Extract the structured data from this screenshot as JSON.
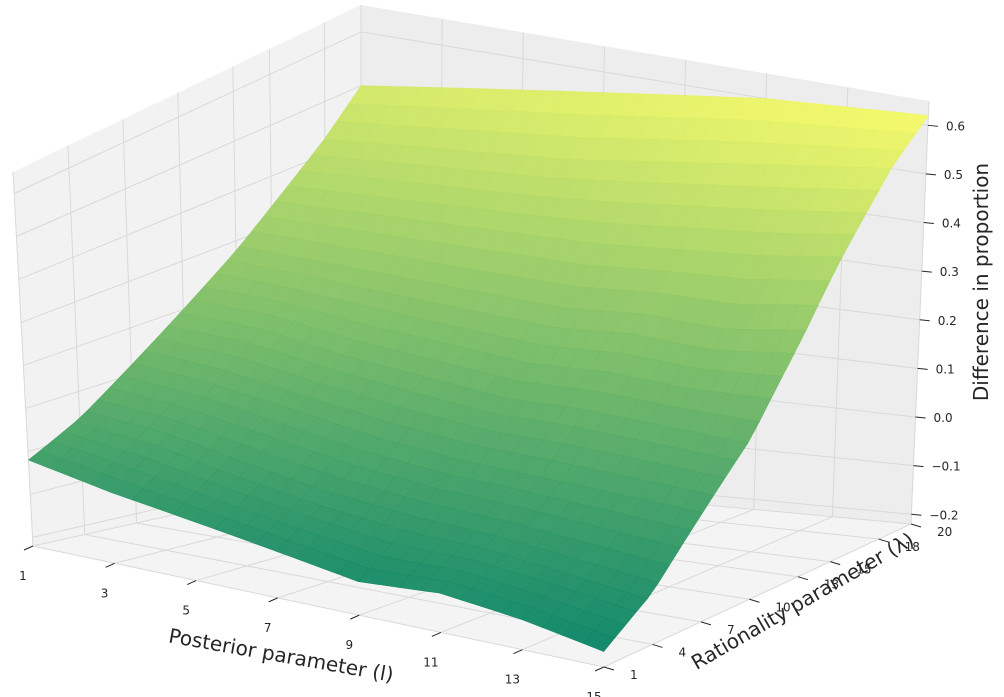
{
  "chart_data": {
    "type": "surface",
    "title": "",
    "xlabel": "Posterior parameter (l)",
    "ylabel": "Rationality parameter (λ)",
    "zlabel": "Difference in proportion",
    "x_ticks": [
      "1",
      "3",
      "5",
      "7",
      "9",
      "11",
      "13",
      "15"
    ],
    "y_ticks": [
      "1",
      "4",
      "7",
      "10",
      "13",
      "15",
      "18",
      "20"
    ],
    "z_ticks": [
      "−0.2",
      "−0.1",
      "0.0",
      "0.1",
      "0.2",
      "0.3",
      "0.4",
      "0.5",
      "0.6"
    ],
    "xlim": [
      1,
      15
    ],
    "ylim": [
      1,
      20
    ],
    "zlim": [
      -0.22,
      0.65
    ],
    "colormap": "summer",
    "grid": true,
    "corners": {
      "x1_y1": -0.02,
      "x15_y1": -0.19,
      "x1_y20": 0.5,
      "x15_y20": 0.62
    },
    "x": [
      1,
      3,
      5,
      7,
      9,
      11,
      13,
      15
    ],
    "y": [
      1,
      4,
      7,
      10,
      13,
      15,
      18,
      20
    ],
    "z": [
      [
        -0.02,
        -0.06,
        -0.09,
        -0.12,
        -0.15,
        -0.14,
        -0.16,
        -0.19
      ],
      [
        0.04,
        0.02,
        -0.02,
        -0.05,
        -0.07,
        -0.08,
        -0.1,
        -0.12
      ],
      [
        0.12,
        0.1,
        0.07,
        0.04,
        0.02,
        0.01,
        0.0,
        -0.01
      ],
      [
        0.2,
        0.19,
        0.16,
        0.14,
        0.12,
        0.12,
        0.11,
        0.1
      ],
      [
        0.28,
        0.27,
        0.26,
        0.25,
        0.24,
        0.25,
        0.24,
        0.26
      ],
      [
        0.34,
        0.34,
        0.34,
        0.34,
        0.34,
        0.35,
        0.36,
        0.38
      ],
      [
        0.43,
        0.44,
        0.45,
        0.46,
        0.48,
        0.5,
        0.52,
        0.54
      ],
      [
        0.5,
        0.52,
        0.54,
        0.56,
        0.58,
        0.6,
        0.61,
        0.62
      ]
    ]
  }
}
